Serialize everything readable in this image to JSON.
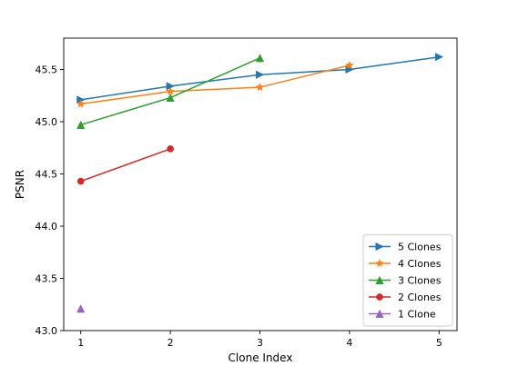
{
  "chart_data": {
    "type": "line",
    "title": "",
    "xlabel": "Clone Index",
    "ylabel": "PSNR",
    "xlim": [
      0.81,
      5.2
    ],
    "ylim": [
      43.0,
      45.8
    ],
    "xticks": [
      1,
      2,
      3,
      4,
      5
    ],
    "yticks": [
      43.0,
      43.5,
      44.0,
      44.5,
      45.0,
      45.5
    ],
    "ytick_labels": [
      "43.0",
      "43.5",
      "44.0",
      "44.5",
      "45.0",
      "45.5"
    ],
    "grid": false,
    "legend_position": "lower-right",
    "series": [
      {
        "name": "5 Clones",
        "color": "#1f77b4",
        "marker": "triangle-right",
        "x": [
          1,
          2,
          3,
          4,
          5
        ],
        "y": [
          45.21,
          45.34,
          45.45,
          45.5,
          45.62
        ]
      },
      {
        "name": "4 Clones",
        "color": "#ff7f0e",
        "marker": "star",
        "x": [
          1,
          2,
          3,
          4
        ],
        "y": [
          45.17,
          45.29,
          45.33,
          45.54
        ]
      },
      {
        "name": "3 Clones",
        "color": "#2ca02c",
        "marker": "triangle-up",
        "x": [
          1,
          2,
          3
        ],
        "y": [
          44.97,
          45.23,
          45.61
        ]
      },
      {
        "name": "2 Clones",
        "color": "#d62728",
        "marker": "circle",
        "x": [
          1,
          2
        ],
        "y": [
          44.43,
          44.74
        ]
      },
      {
        "name": "1 Clone",
        "color": "#9467bd",
        "marker": "triangle-up",
        "x": [
          1
        ],
        "y": [
          43.21
        ]
      }
    ]
  }
}
